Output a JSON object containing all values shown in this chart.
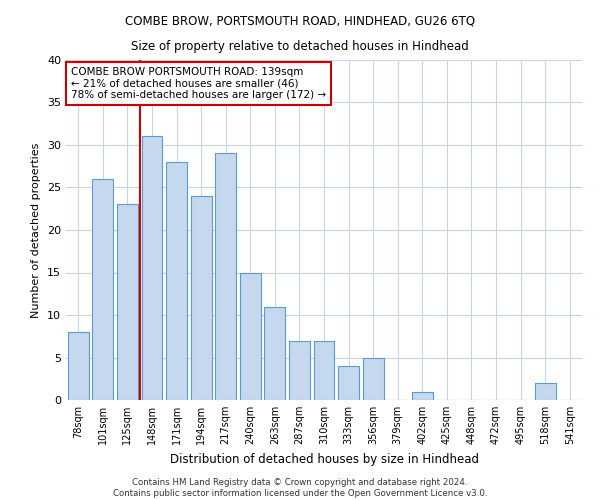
{
  "title1": "COMBE BROW, PORTSMOUTH ROAD, HINDHEAD, GU26 6TQ",
  "title2": "Size of property relative to detached houses in Hindhead",
  "xlabel": "Distribution of detached houses by size in Hindhead",
  "ylabel": "Number of detached properties",
  "categories": [
    "78sqm",
    "101sqm",
    "125sqm",
    "148sqm",
    "171sqm",
    "194sqm",
    "217sqm",
    "240sqm",
    "263sqm",
    "287sqm",
    "310sqm",
    "333sqm",
    "356sqm",
    "379sqm",
    "402sqm",
    "425sqm",
    "448sqm",
    "472sqm",
    "495sqm",
    "518sqm",
    "541sqm"
  ],
  "values": [
    8,
    26,
    23,
    31,
    28,
    24,
    29,
    15,
    11,
    7,
    7,
    4,
    5,
    0,
    1,
    0,
    0,
    0,
    0,
    2,
    0
  ],
  "bar_color": "#c5d8ed",
  "bar_edge_color": "#5b9bd5",
  "vline_x": 2.5,
  "vline_color": "#cc0000",
  "annotation_text": "COMBE BROW PORTSMOUTH ROAD: 139sqm\n← 21% of detached houses are smaller (46)\n78% of semi-detached houses are larger (172) →",
  "footer_text": "Contains HM Land Registry data © Crown copyright and database right 2024.\nContains public sector information licensed under the Open Government Licence v3.0.",
  "ylim": [
    0,
    40
  ],
  "yticks": [
    0,
    5,
    10,
    15,
    20,
    25,
    30,
    35,
    40
  ],
  "background_color": "#ffffff",
  "grid_color": "#c8d4e3"
}
